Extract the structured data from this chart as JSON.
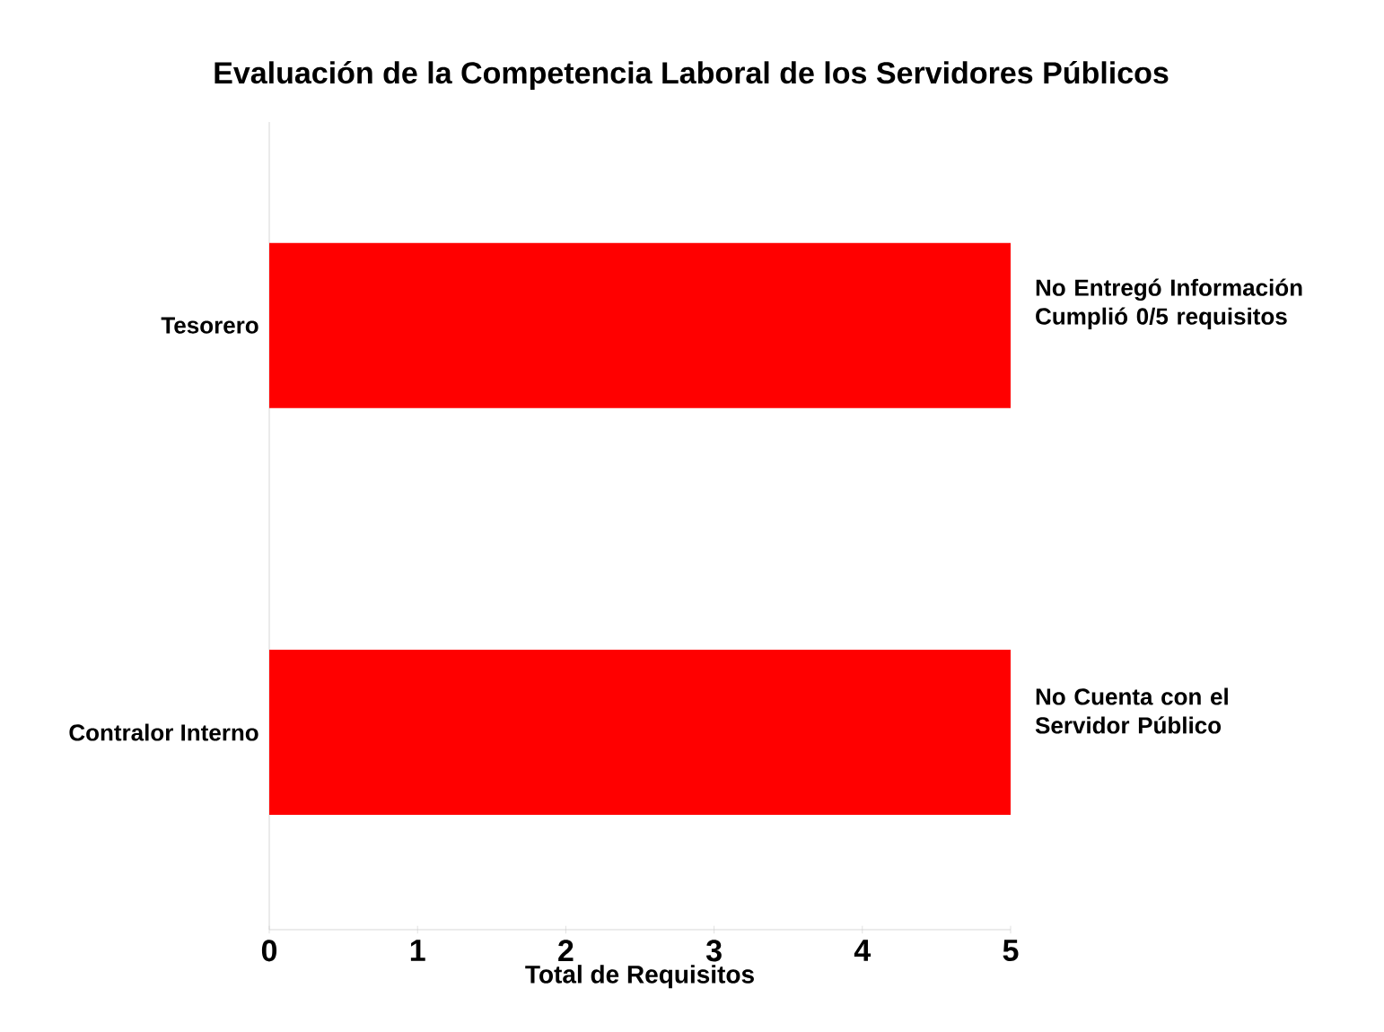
{
  "chart_data": {
    "type": "bar",
    "orientation": "horizontal",
    "title": "Evaluación de la Competencia Laboral de los Servidores Públicos",
    "xlabel": "Total de Requisitos",
    "categories": [
      "Tesorero",
      "Contralor Interno"
    ],
    "values": [
      5,
      5
    ],
    "color": "#ff0000",
    "xlim": [
      0,
      5
    ],
    "xticks": [
      0,
      1,
      2,
      3,
      4,
      5
    ],
    "annotations": [
      "No Entregó Información Cumplió 0/5 requisitos",
      "No Cuenta con el Servidor Público"
    ]
  }
}
